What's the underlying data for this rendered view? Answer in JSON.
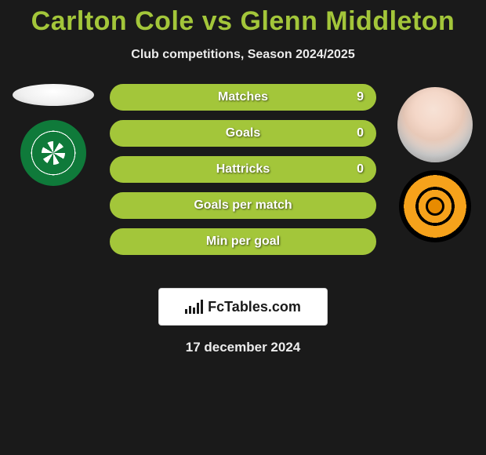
{
  "title_color": "#a3c63a",
  "title": "Carlton Cole vs Glenn Middleton",
  "subtitle": "Club competitions, Season 2024/2025",
  "stat_rows": [
    {
      "label": "Matches",
      "right_value": "9",
      "fill_color": "#a3c63a",
      "border_color": "#a3c63a",
      "right_fill_pct": 100
    },
    {
      "label": "Goals",
      "right_value": "0",
      "fill_color": "#a3c63a",
      "border_color": "#a3c63a",
      "right_fill_pct": 100
    },
    {
      "label": "Hattricks",
      "right_value": "0",
      "fill_color": "#a3c63a",
      "border_color": "#a3c63a",
      "right_fill_pct": 100
    },
    {
      "label": "Goals per match",
      "right_value": "",
      "fill_color": "#a3c63a",
      "border_color": "#a3c63a",
      "right_fill_pct": 100
    },
    {
      "label": "Min per goal",
      "right_value": "",
      "fill_color": "#a3c63a",
      "border_color": "#a3c63a",
      "right_fill_pct": 100
    }
  ],
  "brand_text": "FcTables.com",
  "date_text": "17 december 2024",
  "left_player": {
    "name": "Carlton Cole",
    "club": "Celtic"
  },
  "right_player": {
    "name": "Glenn Middleton",
    "club": "Dundee United"
  },
  "background_color": "#1a1a1a"
}
